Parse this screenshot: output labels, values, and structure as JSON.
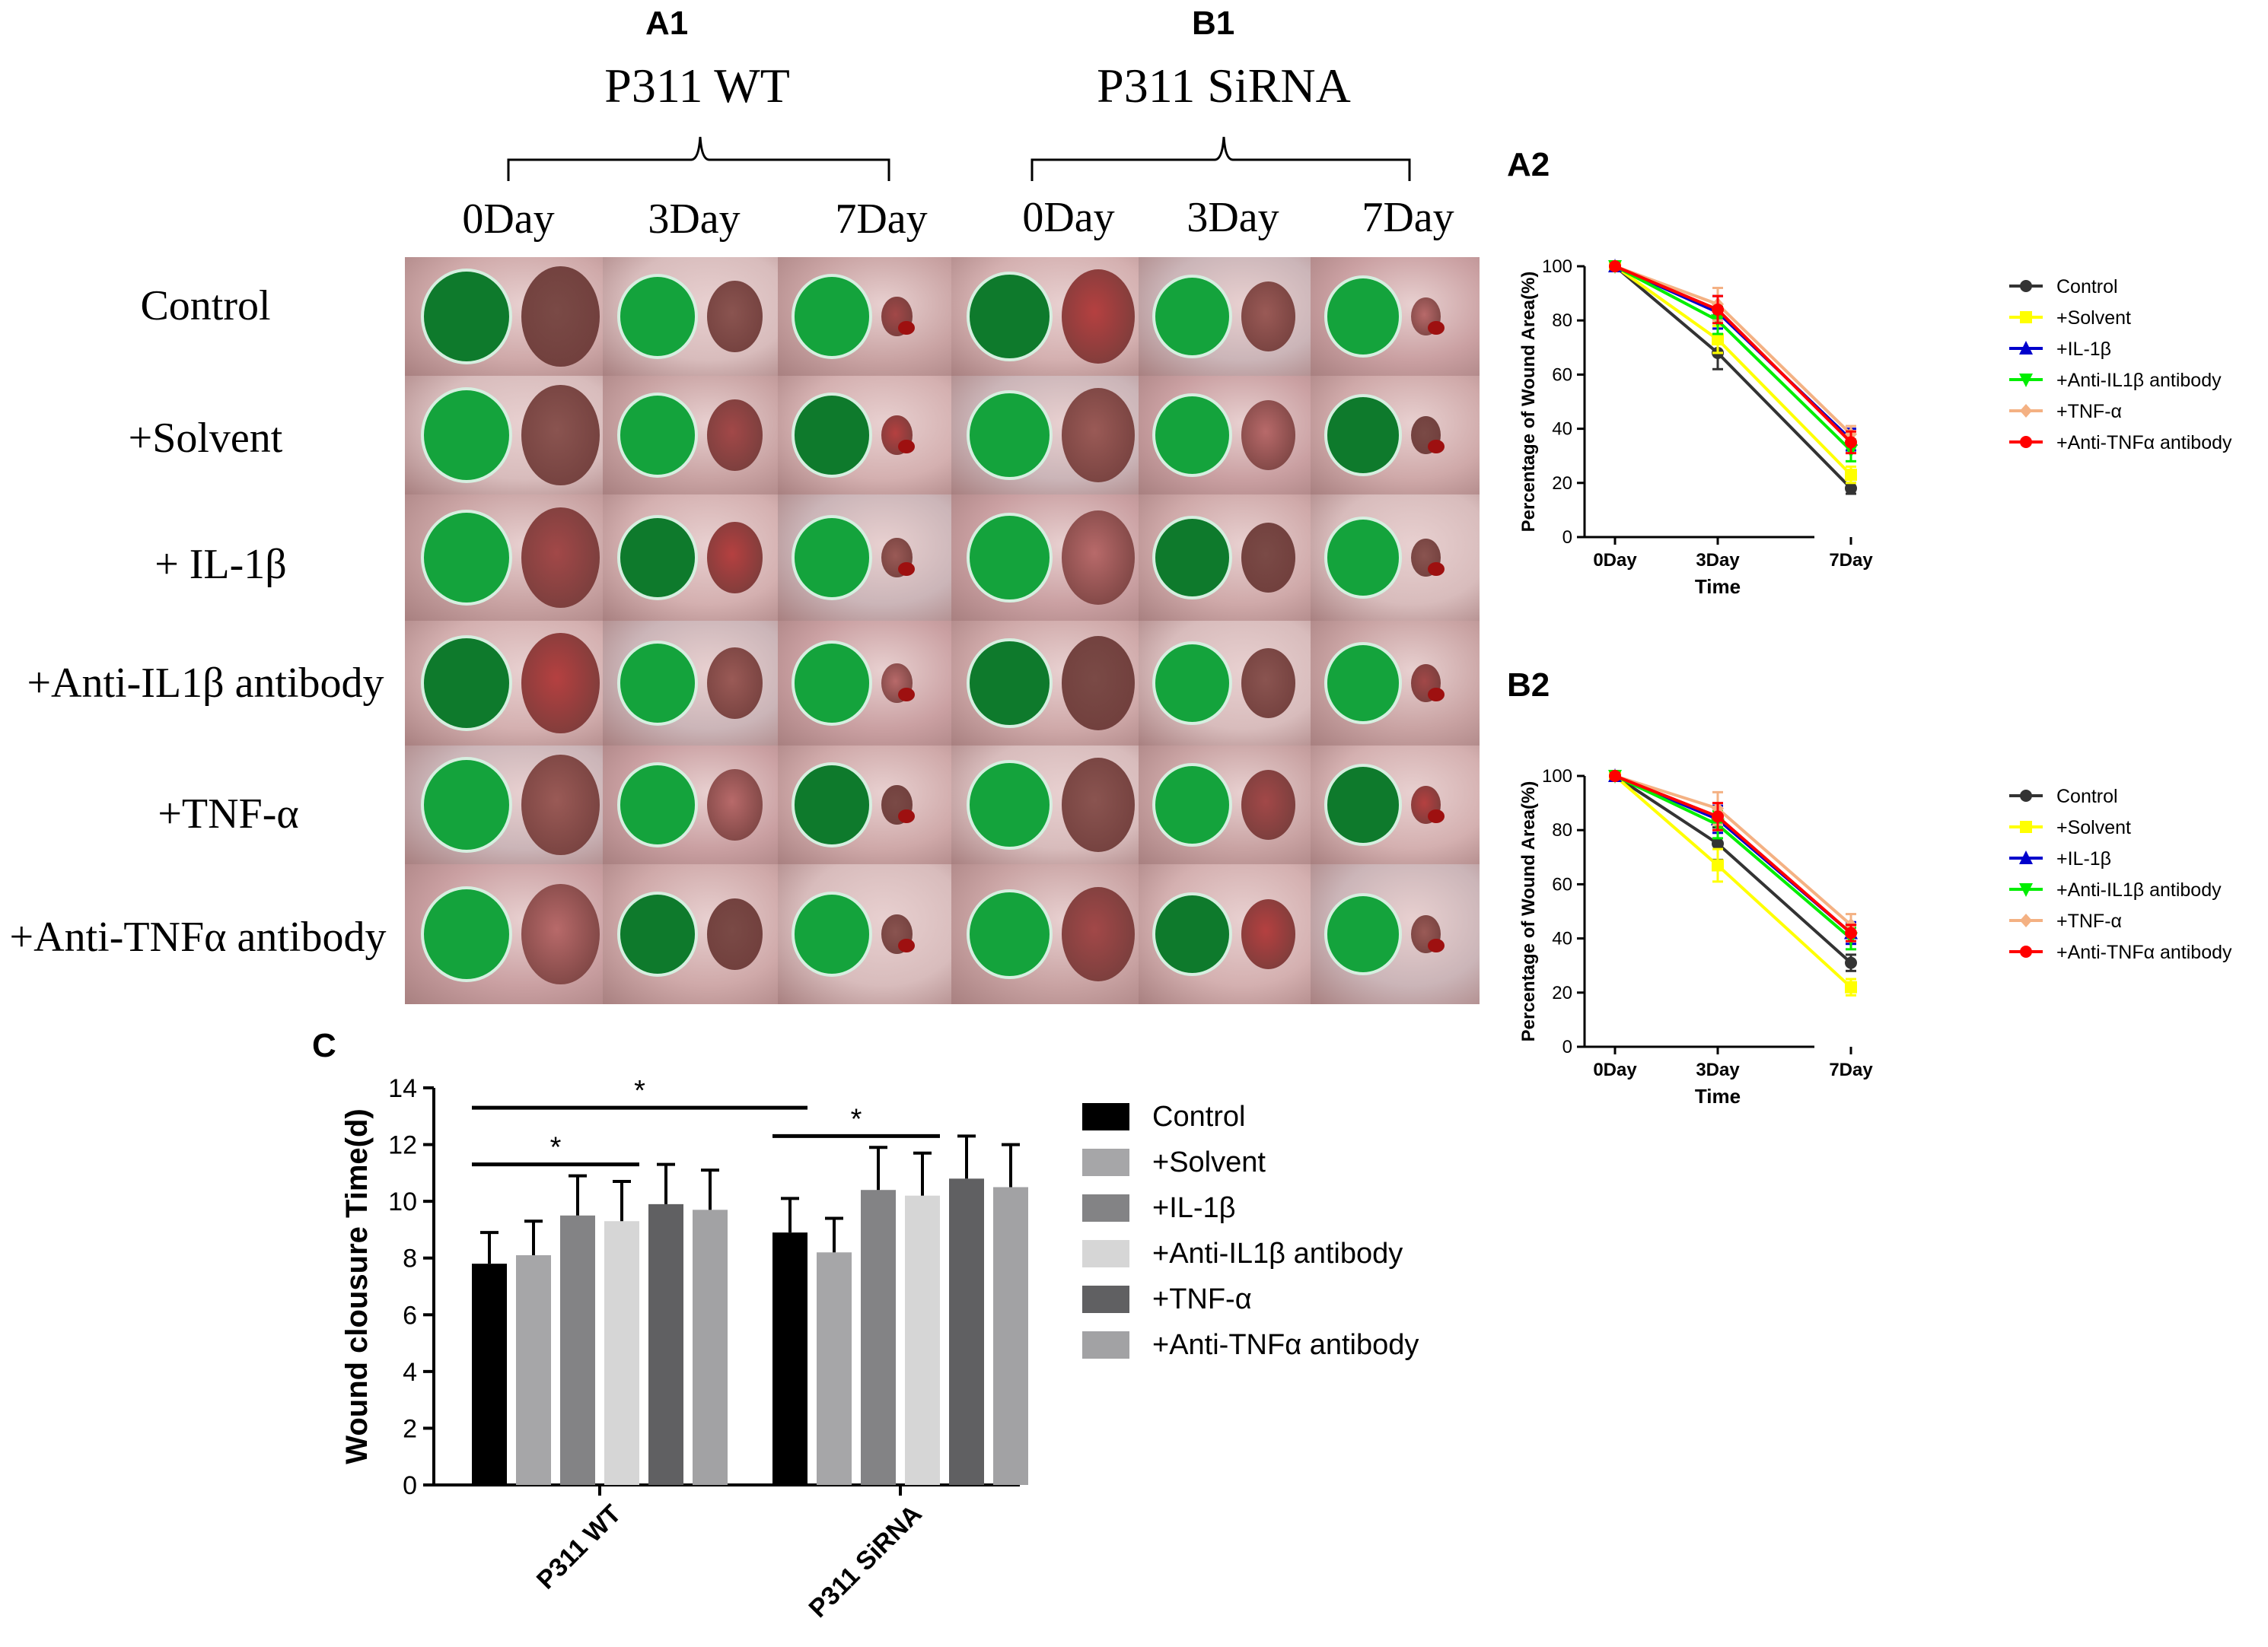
{
  "figure": {
    "panel_A1": "A1",
    "panel_B1": "B1",
    "panel_A2": "A2",
    "panel_B2": "B2",
    "panel_C": "C",
    "group_A": "P311 WT",
    "group_B": "P311 SiRNA",
    "days": [
      "0Day",
      "3Day",
      "7Day",
      "0Day",
      "3Day",
      "7Day"
    ],
    "rows": [
      "Control",
      "+Solvent",
      "+ IL-1β",
      "+Anti-IL1β antibody",
      "+TNF-α",
      "+Anti-TNFα antibody"
    ]
  },
  "colors": {
    "dot_green": "#14a33c",
    "dot_dark": "#0e7a2c",
    "skin_light": "#d8b8b8",
    "skin_pink": "#c99090",
    "wound_brown": "#7a4a46",
    "wound_red": "#b54040"
  },
  "chart_data": [
    {
      "id": "A2",
      "type": "line",
      "title": "",
      "xlabel": "Time",
      "ylabel": "Percentage of Wound Area(%)",
      "categories": [
        "0Day",
        "3Day",
        "7Day"
      ],
      "ylim": [
        0,
        100
      ],
      "yticks": [
        "0",
        "20",
        "40",
        "60",
        "80",
        "100"
      ],
      "series": [
        {
          "name": "Control",
          "values": [
            100,
            68,
            18
          ],
          "err": [
            1,
            6,
            2
          ],
          "color": "#333333",
          "marker": "circle"
        },
        {
          "name": " +Solvent",
          "values": [
            100,
            73,
            23
          ],
          "err": [
            1,
            5,
            3
          ],
          "color": "#ffff00",
          "marker": "square"
        },
        {
          "name": "+IL-1β",
          "values": [
            100,
            83,
            36
          ],
          "err": [
            1,
            6,
            4
          ],
          "color": "#0000cc",
          "marker": "triangle"
        },
        {
          "name": "+Anti-IL1β antibody",
          "values": [
            100,
            80,
            32
          ],
          "err": [
            1,
            5,
            4
          ],
          "color": "#00ee00",
          "marker": "tri-down"
        },
        {
          "name": "+TNF-α",
          "values": [
            100,
            86,
            38
          ],
          "err": [
            1,
            6,
            3
          ],
          "color": "#f4b183",
          "marker": "diamond"
        },
        {
          "name": "+Anti-TNFα antibody",
          "values": [
            100,
            84,
            35
          ],
          "err": [
            1,
            5,
            4
          ],
          "color": "#ff0000",
          "marker": "circle"
        }
      ]
    },
    {
      "id": "B2",
      "type": "line",
      "title": "",
      "xlabel": "Time",
      "ylabel": "Percentage of Wound Area(%)",
      "categories": [
        "0Day",
        "3Day",
        "7Day"
      ],
      "ylim": [
        0,
        100
      ],
      "yticks": [
        "0",
        "20",
        "40",
        "60",
        "80",
        "100"
      ],
      "series": [
        {
          "name": "Control",
          "values": [
            100,
            75,
            31
          ],
          "err": [
            1,
            6,
            3
          ],
          "color": "#333333",
          "marker": "circle"
        },
        {
          "name": "+Solvent",
          "values": [
            100,
            67,
            22
          ],
          "err": [
            1,
            6,
            3
          ],
          "color": "#ffff00",
          "marker": "square"
        },
        {
          "name": "+IL-1β",
          "values": [
            100,
            84,
            42
          ],
          "err": [
            1,
            5,
            4
          ],
          "color": "#0000cc",
          "marker": "triangle"
        },
        {
          "name": "+Anti-IL1β antibody",
          "values": [
            100,
            82,
            40
          ],
          "err": [
            1,
            5,
            4
          ],
          "color": "#00ee00",
          "marker": "tri-down"
        },
        {
          "name": "+TNF-α",
          "values": [
            100,
            88,
            45
          ],
          "err": [
            1,
            6,
            4
          ],
          "color": "#f4b183",
          "marker": "diamond"
        },
        {
          "name": "+Anti-TNFα antibody",
          "values": [
            100,
            85,
            42
          ],
          "err": [
            1,
            5,
            3
          ],
          "color": "#ff0000",
          "marker": "circle"
        }
      ]
    },
    {
      "id": "C",
      "type": "bar",
      "title": "",
      "xlabel": "",
      "ylabel": "Wound clousure Time(d)",
      "categories": [
        "P311 WT",
        "P311 SiRNA"
      ],
      "ylim": [
        0,
        14
      ],
      "yticks": [
        "0",
        "2",
        "4",
        "6",
        "8",
        "10",
        "12",
        "14"
      ],
      "series": [
        {
          "name": "Control",
          "values": [
            7.8,
            8.9
          ],
          "err": [
            1.1,
            1.2
          ],
          "color": "#000000"
        },
        {
          "name": "+Solvent",
          "values": [
            8.1,
            8.2
          ],
          "err": [
            1.2,
            1.2
          ],
          "color": "#a6a6a8"
        },
        {
          "name": "+IL-1β",
          "values": [
            9.5,
            10.4
          ],
          "err": [
            1.4,
            1.5
          ],
          "color": "#838385"
        },
        {
          "name": "+Anti-IL1β antibody",
          "values": [
            9.3,
            10.2
          ],
          "err": [
            1.4,
            1.5
          ],
          "color": "#d6d6d6"
        },
        {
          "name": "+TNF-α",
          "values": [
            9.9,
            10.8
          ],
          "err": [
            1.4,
            1.5
          ],
          "color": "#606062"
        },
        {
          "name": "+Anti-TNFα antibody",
          "values": [
            9.7,
            10.5
          ],
          "err": [
            1.4,
            1.5
          ],
          "color": "#a2a2a4"
        }
      ],
      "annotations": [
        {
          "text": "*",
          "from": "P311 WT:Control",
          "to": "P311 WT:+Anti-IL1β antibody"
        },
        {
          "text": "*",
          "from": "P311 WT:Control",
          "to": "P311 SiRNA:Control"
        },
        {
          "text": "*",
          "from": "P311 SiRNA:Control",
          "to": "P311 SiRNA:+Anti-IL1β antibody"
        }
      ]
    }
  ]
}
